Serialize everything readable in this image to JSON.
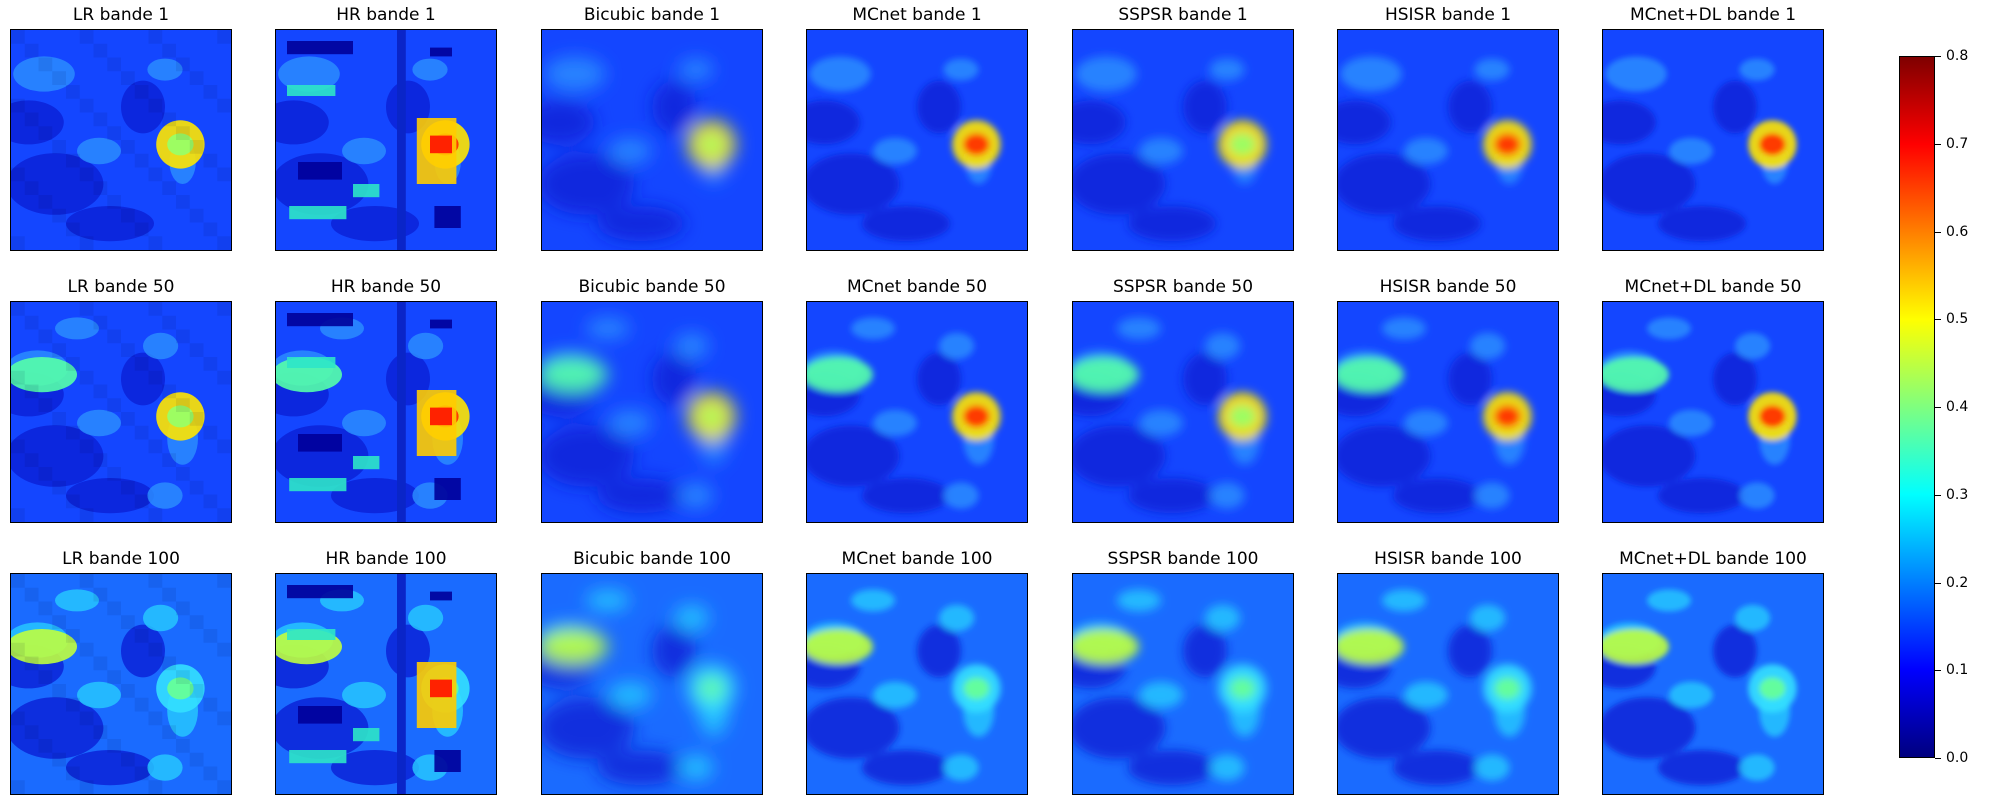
{
  "figure": {
    "rows": [
      {
        "band": 1,
        "panels": [
          "LR bande 1",
          "HR bande 1",
          "Bicubic bande 1",
          "MCnet bande 1",
          "SSPSR bande 1",
          "HSISR bande 1",
          "MCnet+DL bande 1"
        ]
      },
      {
        "band": 50,
        "panels": [
          "LR bande 50",
          "HR bande 50",
          "Bicubic bande 50",
          "MCnet bande 50",
          "SSPSR bande 50",
          "HSISR bande 50",
          "MCnet+DL bande 50"
        ]
      },
      {
        "band": 100,
        "panels": [
          "LR bande 100",
          "HR bande 100",
          "Bicubic bande 100",
          "MCnet bande 100",
          "SSPSR bande 100",
          "HSISR bande 100",
          "MCnet+DL bande 100"
        ]
      }
    ],
    "colorbar": {
      "colormap": "jet",
      "range": [
        0.0,
        0.8
      ],
      "ticks": [
        "0.0",
        "0.1",
        "0.2",
        "0.3",
        "0.4",
        "0.5",
        "0.6",
        "0.7",
        "0.8"
      ]
    }
  }
}
